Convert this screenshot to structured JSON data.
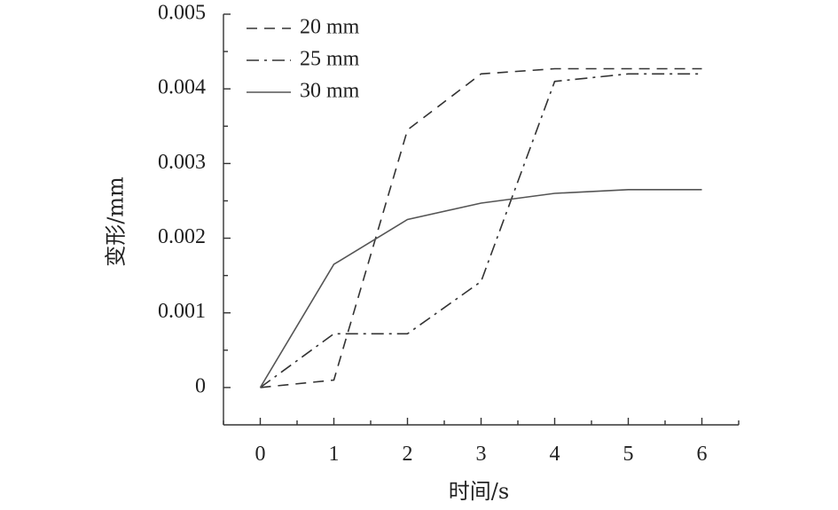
{
  "chart_data": {
    "type": "line",
    "title": "",
    "xlabel": "时间/s",
    "ylabel": "变形/mm",
    "x": [
      0,
      1,
      2,
      3,
      4,
      5,
      6
    ],
    "xlim": [
      -0.5,
      6.5
    ],
    "ylim": [
      -0.0005,
      0.005
    ],
    "xticks": [
      "0",
      "1",
      "2",
      "3",
      "4",
      "5",
      "6"
    ],
    "yticks": [
      "0",
      "0.001",
      "0.002",
      "0.003",
      "0.004",
      "0.005"
    ],
    "ytick_values": [
      0,
      0.001,
      0.002,
      0.003,
      0.004,
      0.005
    ],
    "grid": false,
    "legend_position": "top-left",
    "series": [
      {
        "name": "20 mm",
        "style": "dashed",
        "color": "#333333",
        "values": [
          0,
          0.0001,
          0.00345,
          0.0042,
          0.00427,
          0.00427,
          0.00427
        ]
      },
      {
        "name": "25 mm",
        "style": "dash-dot",
        "color": "#333333",
        "values": [
          0,
          0.00072,
          0.00072,
          0.00142,
          0.0041,
          0.0042,
          0.0042
        ]
      },
      {
        "name": "30 mm",
        "style": "solid",
        "color": "#555555",
        "values": [
          0,
          0.00165,
          0.00225,
          0.00247,
          0.0026,
          0.00265,
          0.00265
        ]
      }
    ]
  }
}
